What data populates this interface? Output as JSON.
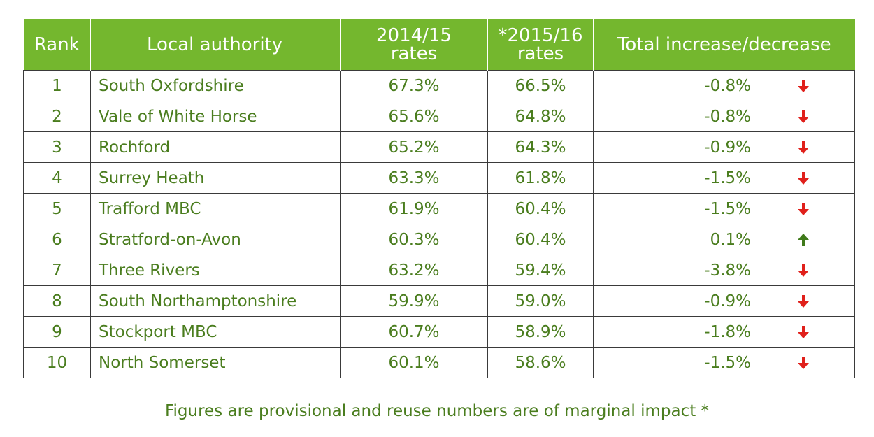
{
  "table": {
    "headers": {
      "rank": "Rank",
      "authority": "Local authority",
      "rates_2014_line1": "2014/15",
      "rates_2014_line2": "rates",
      "rates_2015_line1": "*2015/16",
      "rates_2015_line2": "rates",
      "change": "Total increase/decrease"
    },
    "rows": [
      {
        "rank": "1",
        "authority": "South Oxfordshire",
        "r1415": "67.3%",
        "r1516": "66.5%",
        "change": "-0.8%",
        "direction": "down"
      },
      {
        "rank": "2",
        "authority": "Vale of White Horse",
        "r1415": "65.6%",
        "r1516": "64.8%",
        "change": "-0.8%",
        "direction": "down"
      },
      {
        "rank": "3",
        "authority": "Rochford",
        "r1415": "65.2%",
        "r1516": "64.3%",
        "change": "-0.9%",
        "direction": "down"
      },
      {
        "rank": "4",
        "authority": "Surrey Heath",
        "r1415": "63.3%",
        "r1516": "61.8%",
        "change": "-1.5%",
        "direction": "down"
      },
      {
        "rank": "5",
        "authority": "Trafford MBC",
        "r1415": "61.9%",
        "r1516": "60.4%",
        "change": "-1.5%",
        "direction": "down"
      },
      {
        "rank": "6",
        "authority": "Stratford-on-Avon",
        "r1415": "60.3%",
        "r1516": "60.4%",
        "change": "0.1%",
        "direction": "up"
      },
      {
        "rank": "7",
        "authority": "Three Rivers",
        "r1415": "63.2%",
        "r1516": "59.4%",
        "change": "-3.8%",
        "direction": "down"
      },
      {
        "rank": "8",
        "authority": "South Northamptonshire",
        "r1415": "59.9%",
        "r1516": "59.0%",
        "change": "-0.9%",
        "direction": "down"
      },
      {
        "rank": "9",
        "authority": "Stockport MBC",
        "r1415": "60.7%",
        "r1516": "58.9%",
        "change": "-1.8%",
        "direction": "down"
      },
      {
        "rank": "10",
        "authority": "North Somerset",
        "r1415": "60.1%",
        "r1516": "58.6%",
        "change": "-1.5%",
        "direction": "down"
      }
    ]
  },
  "footnote": "Figures are provisional and reuse numbers are of marginal impact *",
  "colors": {
    "header_bg": "#74b72e",
    "text": "#4a7d1e",
    "down_arrow": "#e0201b",
    "up_arrow": "#3f7a1a"
  },
  "icons": {
    "down": "arrow-down-icon",
    "up": "arrow-up-icon"
  }
}
